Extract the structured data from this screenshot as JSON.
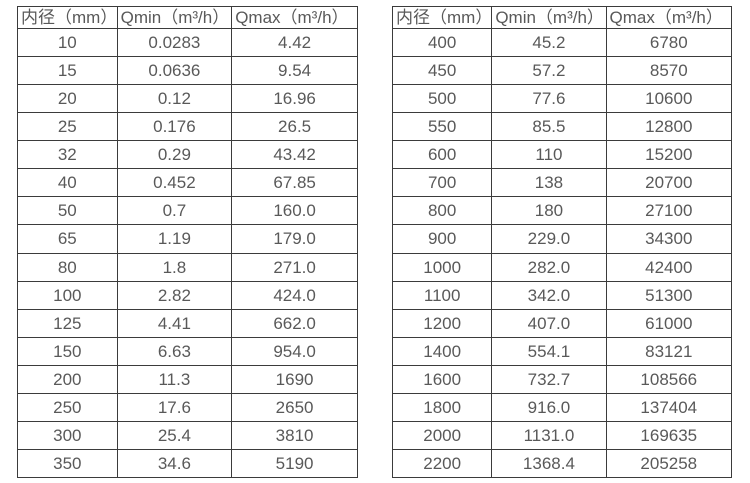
{
  "colors": {
    "background": "#ffffff",
    "table_border": "#3b3b3b",
    "text": "#595959"
  },
  "tables": [
    {
      "name": "flow-spec-table-small-diameters",
      "headers": [
        "内径（mm）",
        "Qmin（m³/h）",
        "Qmax（m³/h）"
      ],
      "rows": [
        [
          "10",
          "0.0283",
          "4.42"
        ],
        [
          "15",
          "0.0636",
          "9.54"
        ],
        [
          "20",
          "0.12",
          "16.96"
        ],
        [
          "25",
          "0.176",
          "26.5"
        ],
        [
          "32",
          "0.29",
          "43.42"
        ],
        [
          "40",
          "0.452",
          "67.85"
        ],
        [
          "50",
          "0.7",
          "160.0"
        ],
        [
          "65",
          "1.19",
          "179.0"
        ],
        [
          "80",
          "1.8",
          "271.0"
        ],
        [
          "100",
          "2.82",
          "424.0"
        ],
        [
          "125",
          "4.41",
          "662.0"
        ],
        [
          "150",
          "6.63",
          "954.0"
        ],
        [
          "200",
          "11.3",
          "1690"
        ],
        [
          "250",
          "17.6",
          "2650"
        ],
        [
          "300",
          "25.4",
          "3810"
        ],
        [
          "350",
          "34.6",
          "5190"
        ]
      ]
    },
    {
      "name": "flow-spec-table-large-diameters",
      "headers": [
        "内径（mm）",
        "Qmin（m³/h）",
        "Qmax（m³/h）"
      ],
      "rows": [
        [
          "400",
          "45.2",
          "6780"
        ],
        [
          "450",
          "57.2",
          "8570"
        ],
        [
          "500",
          "77.6",
          "10600"
        ],
        [
          "550",
          "85.5",
          "12800"
        ],
        [
          "600",
          "110",
          "15200"
        ],
        [
          "700",
          "138",
          "20700"
        ],
        [
          "800",
          "180",
          "27100"
        ],
        [
          "900",
          "229.0",
          "34300"
        ],
        [
          "1000",
          "282.0",
          "42400"
        ],
        [
          "1100",
          "342.0",
          "51300"
        ],
        [
          "1200",
          "407.0",
          "61000"
        ],
        [
          "1400",
          "554.1",
          "83121"
        ],
        [
          "1600",
          "732.7",
          "108566"
        ],
        [
          "1800",
          "916.0",
          "137404"
        ],
        [
          "2000",
          "1131.0",
          "169635"
        ],
        [
          "2200",
          "1368.4",
          "205258"
        ]
      ]
    }
  ]
}
